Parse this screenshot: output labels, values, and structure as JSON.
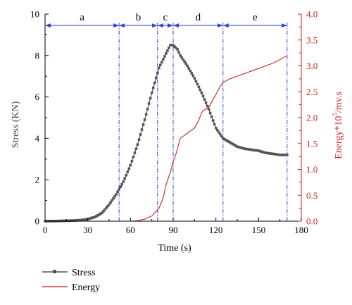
{
  "chart_data": {
    "type": "line",
    "xlabel": "Time (s)",
    "ylabel_left": "Stress (KN)",
    "ylabel_right_prefix": "Energy*10",
    "ylabel_right_sup": "5",
    "ylabel_right_suffix": "/mv.s",
    "xlim": [
      0,
      180
    ],
    "xticks": [
      0,
      30,
      60,
      90,
      120,
      150,
      180
    ],
    "ylim_left": [
      0,
      10
    ],
    "yticks_left": [
      0,
      2,
      4,
      6,
      8,
      10
    ],
    "ylim_right": [
      0,
      4.0
    ],
    "yticks_right": [
      "0.0",
      "0.5",
      "1.0",
      "1.5",
      "2.0",
      "2.5",
      "3.0",
      "3.5",
      "4.0"
    ],
    "grid": false,
    "legend_position": "bottom-left, below plot",
    "colors": {
      "stress": "#555555",
      "energy": "#cc2222",
      "phase": "#3344cc",
      "axis_right": "#cc2222"
    },
    "phases": {
      "labels": [
        "a",
        "b",
        "c",
        "d",
        "e"
      ],
      "boundaries": [
        0,
        52,
        79,
        90,
        125,
        170
      ]
    },
    "series": [
      {
        "name": "Stress",
        "axis": "left",
        "marker": "square",
        "x": [
          0,
          10,
          20,
          25,
          30,
          35,
          40,
          45,
          50,
          55,
          60,
          65,
          70,
          75,
          80,
          85,
          88,
          90,
          93,
          95,
          100,
          105,
          110,
          115,
          120,
          125,
          130,
          135,
          140,
          145,
          150,
          155,
          160,
          165,
          170
        ],
        "y": [
          0,
          0.01,
          0.03,
          0.05,
          0.1,
          0.2,
          0.4,
          0.8,
          1.3,
          1.9,
          2.7,
          3.7,
          4.9,
          6.2,
          7.4,
          8.1,
          8.5,
          8.5,
          8.3,
          8.0,
          7.5,
          6.9,
          6.2,
          5.4,
          4.5,
          4.0,
          3.8,
          3.6,
          3.5,
          3.45,
          3.4,
          3.3,
          3.25,
          3.2,
          3.2
        ]
      },
      {
        "name": "Energy",
        "axis": "right",
        "marker": "none",
        "x": [
          0,
          60,
          65,
          70,
          75,
          80,
          83,
          85,
          88,
          90,
          92,
          95,
          100,
          105,
          108,
          110,
          112,
          115,
          118,
          120,
          123,
          125,
          130,
          140,
          150,
          160,
          165,
          170
        ],
        "y": [
          0,
          0,
          0.01,
          0.04,
          0.1,
          0.25,
          0.45,
          0.7,
          0.95,
          1.15,
          1.3,
          1.6,
          1.7,
          1.8,
          1.95,
          2.1,
          2.15,
          2.2,
          2.35,
          2.45,
          2.6,
          2.68,
          2.75,
          2.85,
          2.95,
          3.05,
          3.12,
          3.2
        ]
      }
    ]
  }
}
